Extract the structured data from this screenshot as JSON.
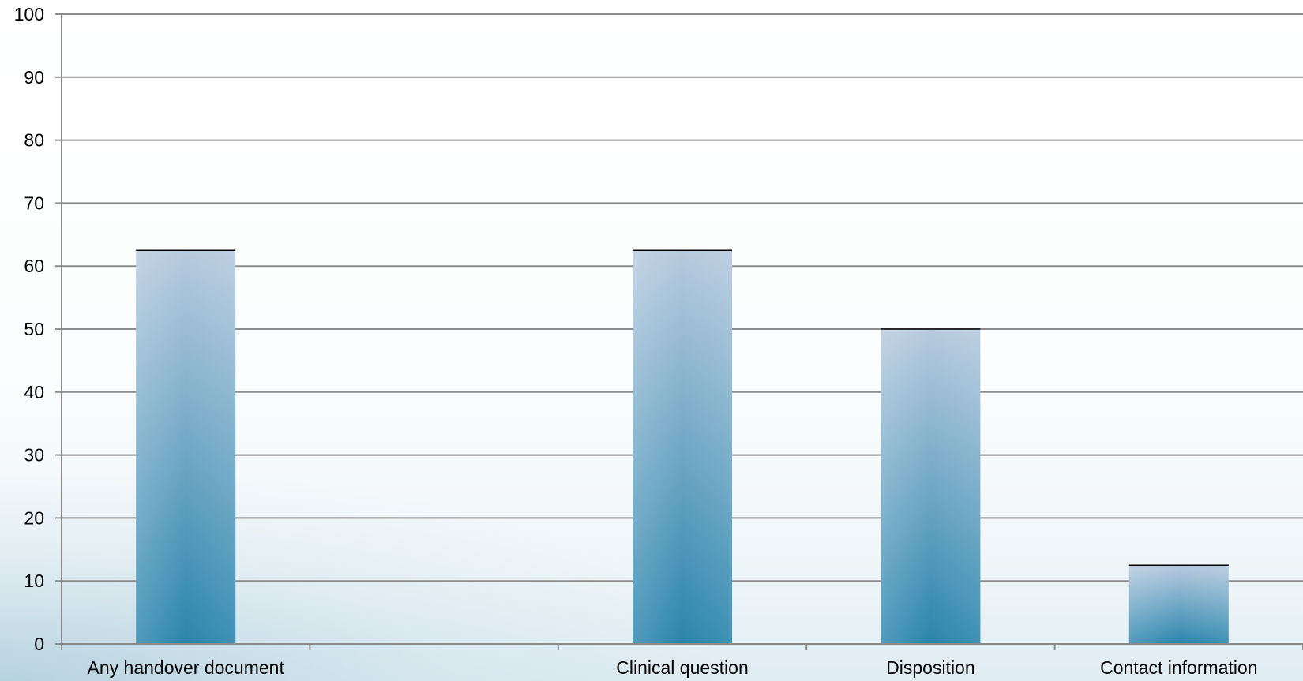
{
  "chart_data": {
    "type": "bar",
    "categories": [
      "Any handover document",
      "",
      "Clinical question",
      "Disposition",
      "Contact information"
    ],
    "values": [
      62.5,
      null,
      62.5,
      50,
      12.5
    ],
    "ylim": [
      0,
      100
    ],
    "yticks": [
      0,
      10,
      20,
      30,
      40,
      50,
      60,
      70,
      80,
      90,
      100
    ],
    "grid": true,
    "legend": "none",
    "bar_color_top": "#b7cade",
    "bar_color_bottom": "#2a85ad",
    "grid_color": "#8c8c8c"
  }
}
